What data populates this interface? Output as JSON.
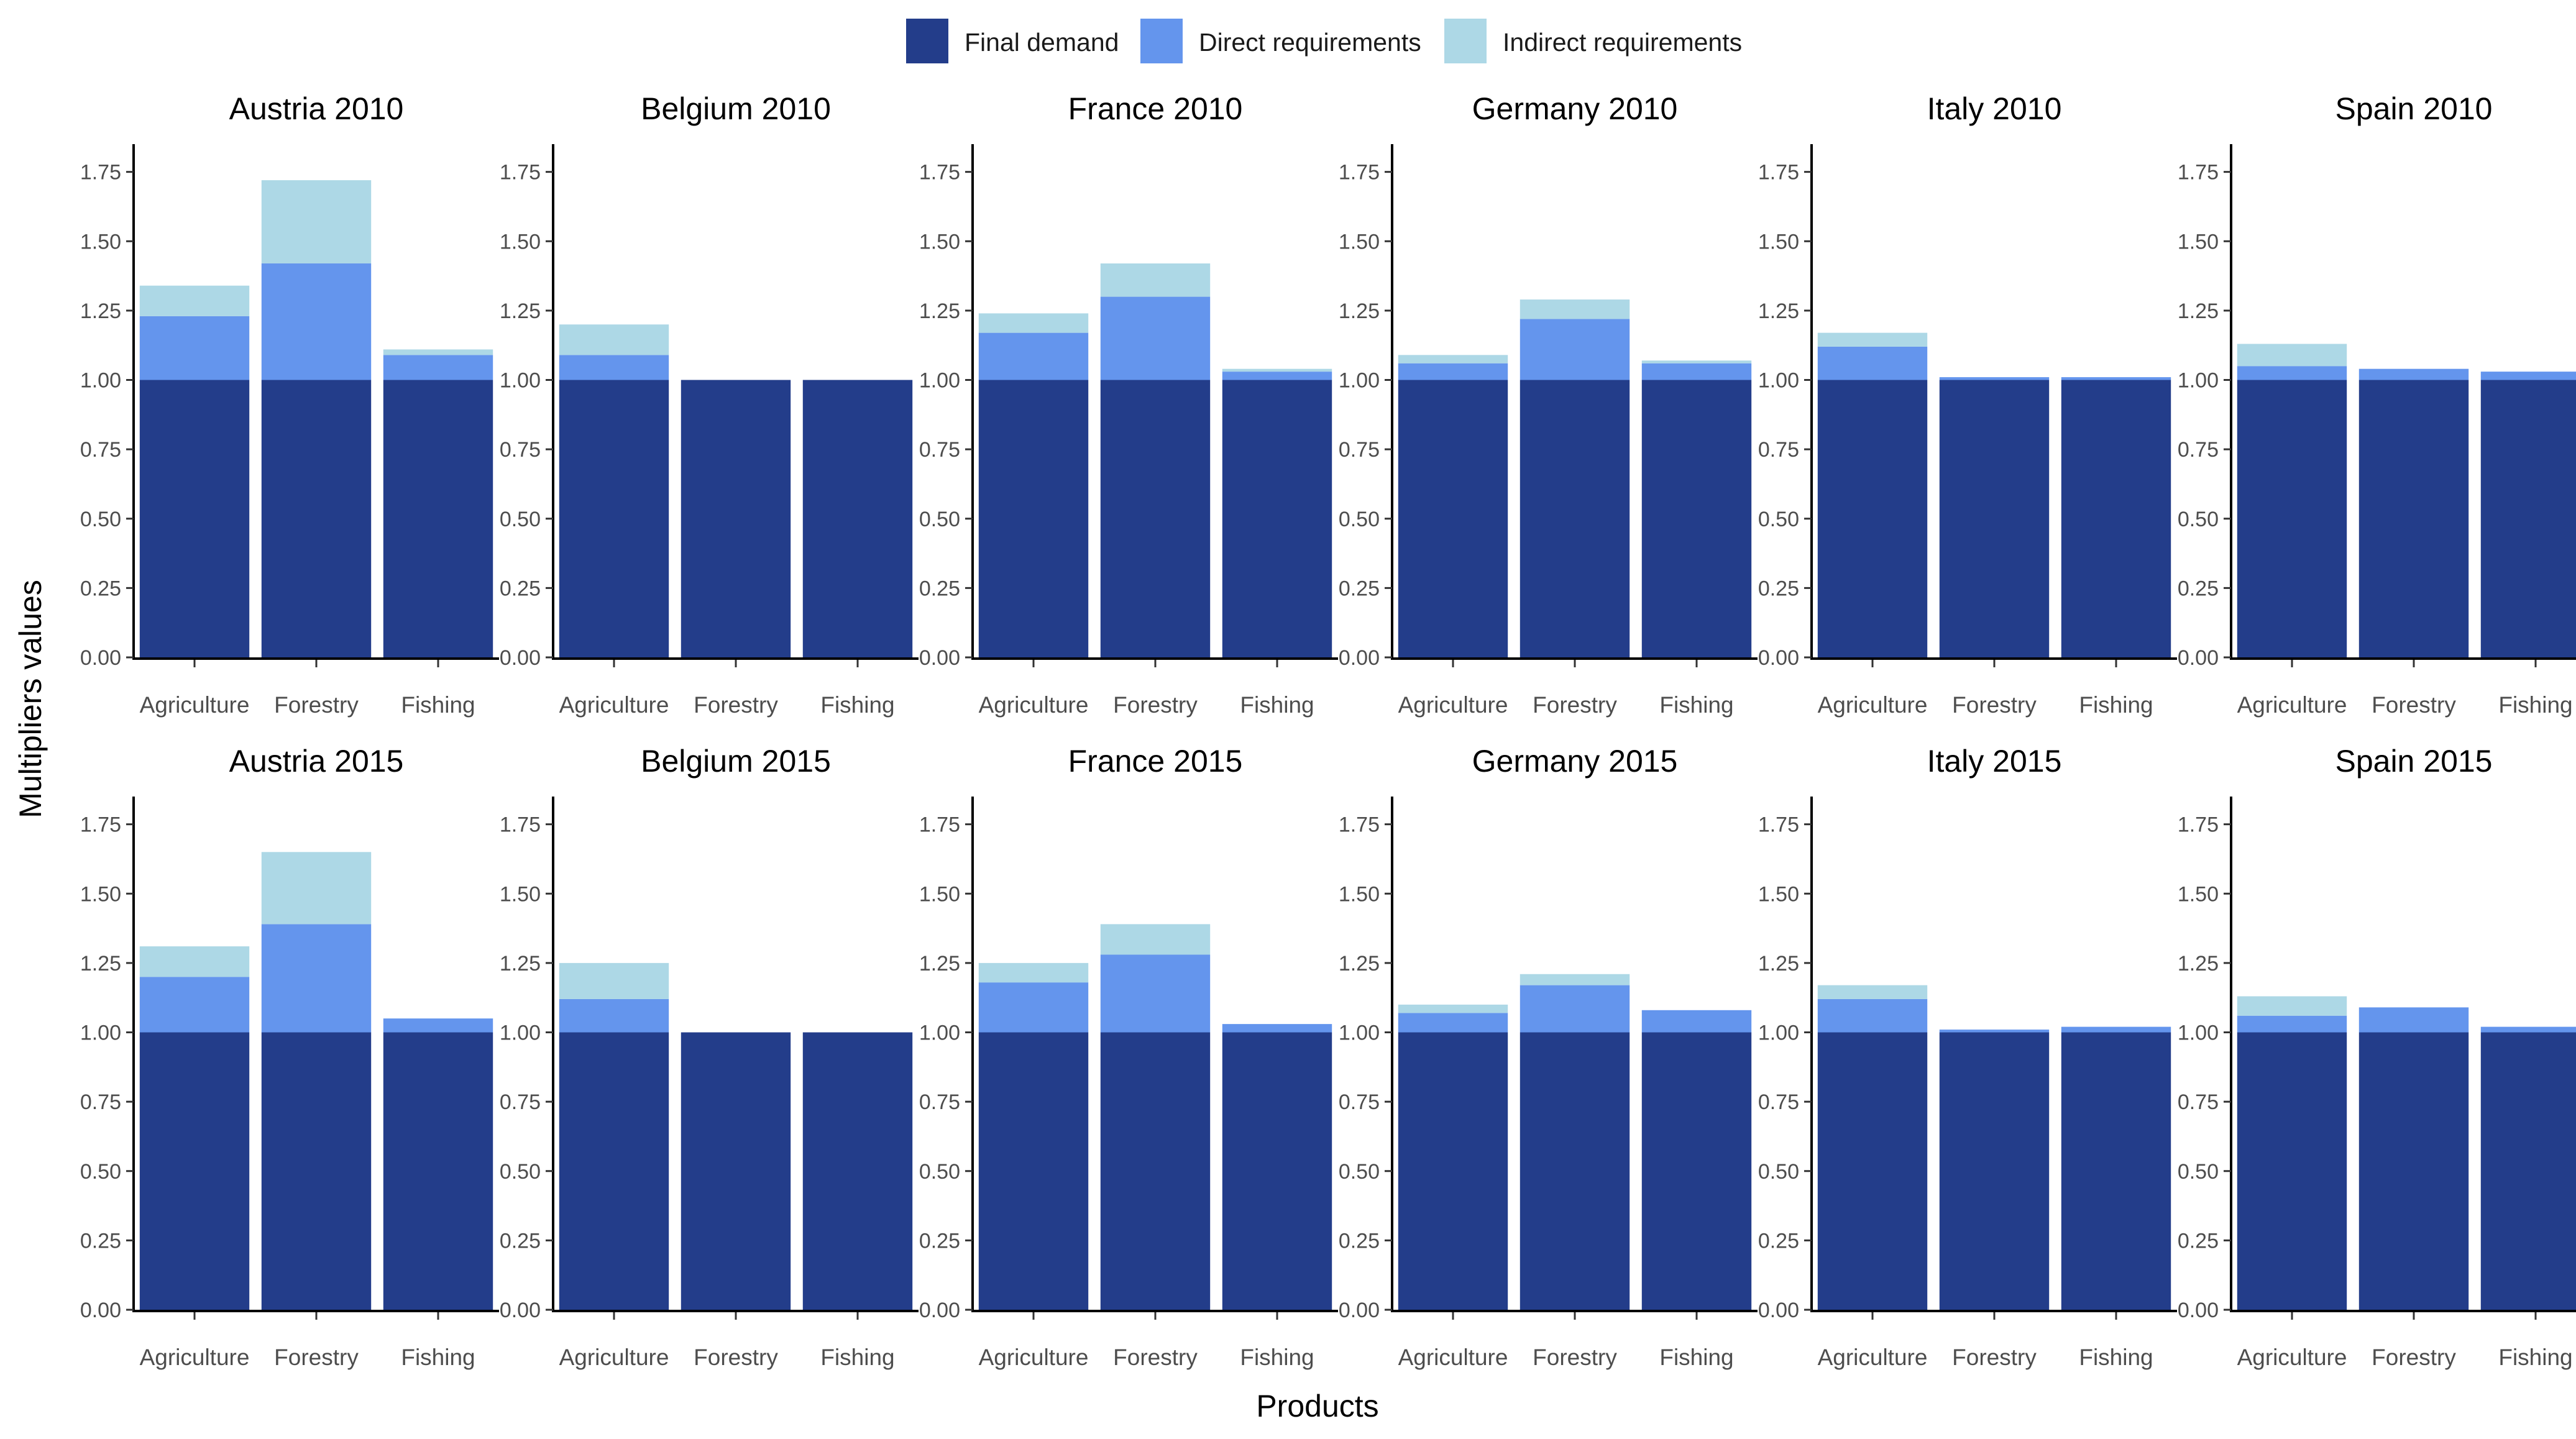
{
  "chart_data": {
    "type": "bar",
    "stacked": true,
    "xlabel": "Products",
    "ylabel": "Multipliers values",
    "ylim": [
      0,
      1.85
    ],
    "yticks": [
      "0.00",
      "0.25",
      "0.50",
      "0.75",
      "1.00",
      "1.25",
      "1.50",
      "1.75"
    ],
    "ytick_values": [
      0,
      0.25,
      0.5,
      0.75,
      1.0,
      1.25,
      1.5,
      1.75
    ],
    "grid": false,
    "legend_position": "top",
    "categories": [
      "Agriculture",
      "Forestry",
      "Fishing"
    ],
    "series": [
      {
        "name": "Final demand",
        "color": "#233d8a"
      },
      {
        "name": "Direct requirements",
        "color": "#6495ed"
      },
      {
        "name": "Indirect requirements",
        "color": "#add8e6"
      }
    ],
    "panels": [
      {
        "title": "Austria 2010",
        "final": [
          1.0,
          1.0,
          1.0
        ],
        "direct": [
          0.23,
          0.42,
          0.09
        ],
        "indirect": [
          0.11,
          0.3,
          0.02
        ]
      },
      {
        "title": "Belgium 2010",
        "final": [
          1.0,
          1.0,
          1.0
        ],
        "direct": [
          0.09,
          0.0,
          0.0
        ],
        "indirect": [
          0.11,
          0.0,
          0.0
        ]
      },
      {
        "title": "France 2010",
        "final": [
          1.0,
          1.0,
          1.0
        ],
        "direct": [
          0.17,
          0.3,
          0.03
        ],
        "indirect": [
          0.07,
          0.12,
          0.01
        ]
      },
      {
        "title": "Germany 2010",
        "final": [
          1.0,
          1.0,
          1.0
        ],
        "direct": [
          0.06,
          0.22,
          0.06
        ],
        "indirect": [
          0.03,
          0.07,
          0.01
        ]
      },
      {
        "title": "Italy 2010",
        "final": [
          1.0,
          1.0,
          1.0
        ],
        "direct": [
          0.12,
          0.01,
          0.01
        ],
        "indirect": [
          0.05,
          0.0,
          0.0
        ]
      },
      {
        "title": "Spain 2010",
        "final": [
          1.0,
          1.0,
          1.0
        ],
        "direct": [
          0.05,
          0.04,
          0.03
        ],
        "indirect": [
          0.08,
          0.0,
          0.0
        ]
      },
      {
        "title": "Austria 2015",
        "final": [
          1.0,
          1.0,
          1.0
        ],
        "direct": [
          0.2,
          0.39,
          0.05
        ],
        "indirect": [
          0.11,
          0.26,
          0.0
        ]
      },
      {
        "title": "Belgium 2015",
        "final": [
          1.0,
          1.0,
          1.0
        ],
        "direct": [
          0.12,
          0.0,
          0.0
        ],
        "indirect": [
          0.13,
          0.0,
          0.0
        ]
      },
      {
        "title": "France 2015",
        "final": [
          1.0,
          1.0,
          1.0
        ],
        "direct": [
          0.18,
          0.28,
          0.03
        ],
        "indirect": [
          0.07,
          0.11,
          0.0
        ]
      },
      {
        "title": "Germany 2015",
        "final": [
          1.0,
          1.0,
          1.0
        ],
        "direct": [
          0.07,
          0.17,
          0.08
        ],
        "indirect": [
          0.03,
          0.04,
          0.0
        ]
      },
      {
        "title": "Italy 2015",
        "final": [
          1.0,
          1.0,
          1.0
        ],
        "direct": [
          0.12,
          0.01,
          0.02
        ],
        "indirect": [
          0.05,
          0.0,
          0.0
        ]
      },
      {
        "title": "Spain 2015",
        "final": [
          1.0,
          1.0,
          1.0
        ],
        "direct": [
          0.06,
          0.09,
          0.02
        ],
        "indirect": [
          0.07,
          0.0,
          0.0
        ]
      }
    ]
  }
}
